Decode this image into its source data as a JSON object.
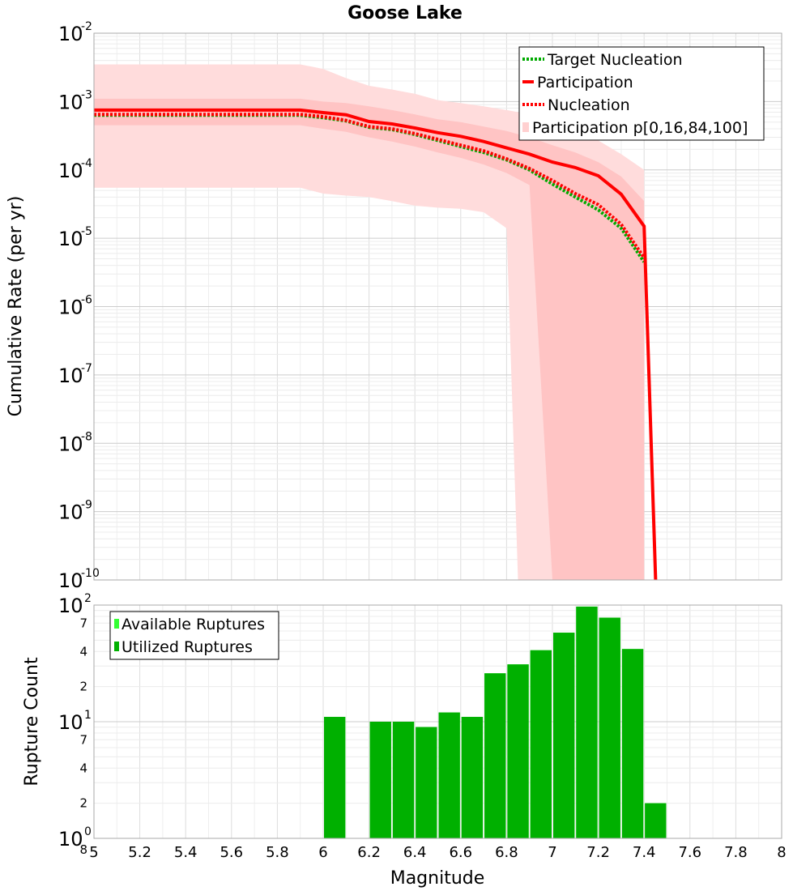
{
  "chart_data": [
    {
      "type": "line",
      "title": "Goose Lake",
      "ylabel": "Cumulative Rate (per yr)",
      "y_scale": "log",
      "ylim": [
        1e-10,
        0.01
      ],
      "xlim": [
        5,
        8
      ],
      "grid": true,
      "legend_placement": "top-right",
      "y_ticks": [
        {
          "base": "10",
          "exp": "-2",
          "value": 0.01
        },
        {
          "base": "10",
          "exp": "-3",
          "value": 0.001
        },
        {
          "base": "10",
          "exp": "-4",
          "value": 0.0001
        },
        {
          "base": "10",
          "exp": "-5",
          "value": 1e-05
        },
        {
          "base": "10",
          "exp": "-6",
          "value": 1e-06
        },
        {
          "base": "10",
          "exp": "-7",
          "value": 1e-07
        },
        {
          "base": "10",
          "exp": "-8",
          "value": 1e-08
        },
        {
          "base": "10",
          "exp": "-9",
          "value": 1e-09
        },
        {
          "base": "10",
          "exp": "-10",
          "value": 1e-10
        }
      ],
      "legend": [
        "Target Nucleation",
        "Participation",
        "Nucleation",
        "Participation p[0,16,84,100]"
      ],
      "series": [
        {
          "name": "Target Nucleation",
          "style": "dotted",
          "color": "#00aa00",
          "x": [
            5.0,
            5.9,
            6.0,
            6.1,
            6.2,
            6.3,
            6.4,
            6.5,
            6.6,
            6.7,
            6.8,
            6.9,
            7.0,
            7.1,
            7.2,
            7.3,
            7.4
          ],
          "y": [
            0.00063,
            0.00063,
            0.00058,
            0.00052,
            0.00042,
            0.00039,
            0.00033,
            0.00027,
            0.00022,
            0.00018,
            0.00014,
            0.0001,
            6.2e-05,
            4e-05,
            2.6e-05,
            1.4e-05,
            4.5e-06
          ]
        },
        {
          "name": "Participation",
          "style": "solid",
          "color": "#ff0000",
          "x": [
            5.0,
            5.9,
            6.0,
            6.1,
            6.2,
            6.3,
            6.4,
            6.5,
            6.6,
            6.7,
            6.8,
            6.9,
            7.0,
            7.1,
            7.2,
            7.3,
            7.4,
            7.45
          ],
          "y": [
            0.00075,
            0.00075,
            0.00069,
            0.00064,
            0.00051,
            0.00047,
            0.00041,
            0.00035,
            0.00031,
            0.00026,
            0.00021,
            0.00017,
            0.00013,
            0.000108,
            8.2e-05,
            4.4e-05,
            1.5e-05,
            1e-10
          ]
        },
        {
          "name": "Nucleation",
          "style": "dotted",
          "color": "#ff0000",
          "x": [
            5.0,
            5.9,
            6.0,
            6.1,
            6.2,
            6.3,
            6.4,
            6.5,
            6.6,
            6.7,
            6.8,
            6.9,
            7.0,
            7.1,
            7.2,
            7.3,
            7.4
          ],
          "y": [
            0.00065,
            0.00065,
            0.0006,
            0.00053,
            0.00043,
            0.0004,
            0.00034,
            0.00028,
            0.00023,
            0.00019,
            0.000145,
            0.000105,
            7e-05,
            4.5e-05,
            3.1e-05,
            1.6e-05,
            5.2e-06
          ]
        }
      ],
      "bands": [
        {
          "name": "Participation p[0,16,84,100]",
          "percentiles": "0-100",
          "color": "#ffdcdc",
          "x": [
            5.0,
            5.9,
            6.0,
            6.1,
            6.2,
            6.3,
            6.4,
            6.5,
            6.6,
            6.7,
            6.8,
            6.85,
            6.9,
            7.0,
            7.1,
            7.2,
            7.3,
            7.4
          ],
          "upper": [
            0.0035,
            0.0035,
            0.003,
            0.0022,
            0.0017,
            0.0015,
            0.0013,
            0.00105,
            0.00095,
            0.00085,
            0.00075,
            0.0007,
            0.00065,
            0.0005,
            0.00038,
            0.00027,
            0.00017,
            0.0001
          ],
          "lower": [
            5.5e-05,
            5.5e-05,
            4.5e-05,
            4.2e-05,
            4e-05,
            3.5e-05,
            3e-05,
            2.8e-05,
            2.7e-05,
            2.4e-05,
            1.4e-05,
            1e-10,
            1e-10,
            1e-10,
            1e-10,
            1e-10,
            1e-10,
            1e-10
          ]
        },
        {
          "name": "Participation p[16,84]",
          "percentiles": "16-84",
          "color": "#ffc4c4",
          "x": [
            5.0,
            5.9,
            6.0,
            6.1,
            6.2,
            6.3,
            6.4,
            6.5,
            6.6,
            6.7,
            6.8,
            6.9,
            7.0,
            7.1,
            7.2,
            7.3,
            7.4
          ],
          "upper": [
            0.0011,
            0.0011,
            0.001,
            0.00095,
            0.00085,
            0.00075,
            0.00065,
            0.00055,
            0.0005,
            0.00043,
            0.00037,
            0.0003,
            0.00023,
            0.00018,
            0.00013,
            8e-05,
            3.5e-05
          ],
          "lower": [
            0.00045,
            0.00045,
            0.0004,
            0.00036,
            0.0003,
            0.00026,
            0.00022,
            0.00018,
            0.00015,
            0.00012,
            9e-05,
            6e-05,
            1e-10,
            1e-10,
            1e-10,
            1e-10,
            1e-10
          ]
        }
      ]
    },
    {
      "type": "bar",
      "xlabel": "Magnitude",
      "ylabel": "Rupture Count",
      "y_scale": "log",
      "ylim": [
        1,
        100
      ],
      "xlim": [
        5,
        8
      ],
      "grid": true,
      "legend_placement": "top-left",
      "legend": [
        "Available Ruptures",
        "Utilized Ruptures"
      ],
      "x_ticks": [
        "5",
        "5.2",
        "5.4",
        "5.6",
        "5.8",
        "6",
        "6.2",
        "6.4",
        "6.6",
        "6.8",
        "7",
        "7.2",
        "7.4",
        "7.6",
        "7.8",
        "8"
      ],
      "y_ticks": [
        {
          "base": "10",
          "exp": "0",
          "value": 1
        },
        {
          "base": "10",
          "exp": "1",
          "value": 10
        },
        {
          "base": "10",
          "exp": "2",
          "value": 100
        }
      ],
      "y_minor_ticks": [
        {
          "label": "8",
          "value": 0.8
        },
        {
          "label": "2",
          "value": 2
        },
        {
          "label": "4",
          "value": 4
        },
        {
          "label": "7",
          "value": 7
        },
        {
          "label": "2",
          "value": 20
        },
        {
          "label": "4",
          "value": 40
        },
        {
          "label": "7",
          "value": 70
        }
      ],
      "bar_width": 0.1,
      "series": [
        {
          "name": "Available Ruptures",
          "color": "#33ff33",
          "x": [
            6.05,
            6.25,
            6.35,
            6.45,
            6.55,
            6.65,
            6.75,
            6.85,
            6.95,
            7.05,
            7.15,
            7.25,
            7.35,
            7.45
          ],
          "values": [
            11,
            10,
            10,
            9,
            12,
            11,
            26,
            31,
            41,
            58,
            97,
            78,
            42,
            2
          ]
        },
        {
          "name": "Utilized Ruptures",
          "color": "#00b000",
          "x": [
            6.05,
            6.25,
            6.35,
            6.45,
            6.55,
            6.65,
            6.75,
            6.85,
            6.95,
            7.05,
            7.15,
            7.25,
            7.35,
            7.45
          ],
          "values": [
            11,
            10,
            10,
            9,
            12,
            11,
            26,
            31,
            41,
            58,
            97,
            78,
            42,
            2
          ]
        }
      ]
    }
  ]
}
